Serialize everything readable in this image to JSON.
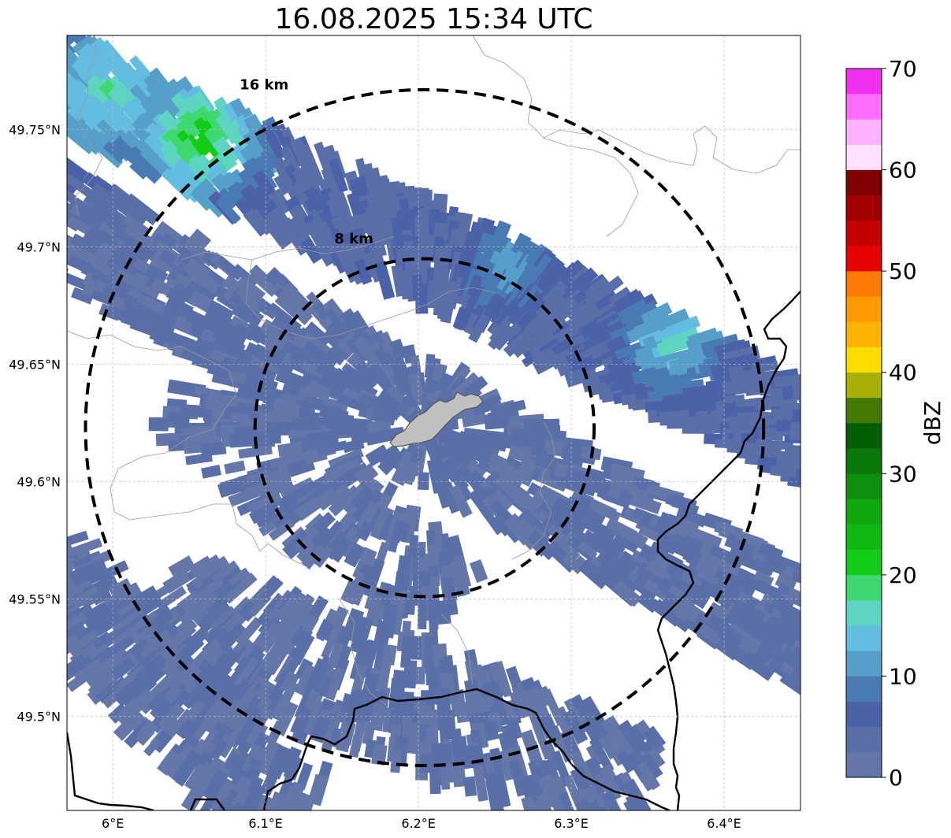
{
  "title": "16.08.2025 15:34 UTC",
  "map": {
    "lon_range": [
      5.97,
      6.45
    ],
    "lat_range": [
      49.46,
      49.79
    ],
    "lon_ticks": [
      {
        "value": 6.0,
        "label": "6°E"
      },
      {
        "value": 6.1,
        "label": "6.1°E"
      },
      {
        "value": 6.2,
        "label": "6.2°E"
      },
      {
        "value": 6.3,
        "label": "6.3°E"
      },
      {
        "value": 6.4,
        "label": "6.4°E"
      }
    ],
    "lat_ticks": [
      {
        "value": 49.75,
        "label": "49.75°N"
      },
      {
        "value": 49.7,
        "label": "49.7°N"
      },
      {
        "value": 49.65,
        "label": "49.65°N"
      },
      {
        "value": 49.6,
        "label": "49.6°N"
      },
      {
        "value": 49.55,
        "label": "49.55°N"
      },
      {
        "value": 49.5,
        "label": "49.5°N"
      }
    ],
    "radar_center": {
      "lon": 6.204,
      "lat": 49.623
    },
    "range_rings": [
      {
        "radius_km": 8,
        "label": "8 km",
        "label_lon": 6.145,
        "label_lat": 49.7015
      },
      {
        "radius_km": 16,
        "label": "16 km",
        "label_lon": 6.083,
        "label_lat": 49.767
      }
    ],
    "grid": true,
    "features": {
      "urban_area_color": "#c0c0c0",
      "border_color": "#000000",
      "admin_line_color": "#999999"
    }
  },
  "colorbar": {
    "label": "dBZ",
    "min": 0,
    "max": 70,
    "step": 2.5,
    "tick_labels": [
      "0",
      "10",
      "20",
      "30",
      "40",
      "50",
      "60",
      "70"
    ],
    "colors": [
      "#6577a8",
      "#5a6ea8",
      "#4b62a8",
      "#4a7ab3",
      "#559fc9",
      "#62bde0",
      "#5ed5c0",
      "#3ed870",
      "#12cc18",
      "#10b910",
      "#10a810",
      "#0e900e",
      "#087808",
      "#045e04",
      "#447a04",
      "#a8b008",
      "#ffdc00",
      "#ffb200",
      "#ff9a00",
      "#ff7a00",
      "#e60000",
      "#c40000",
      "#a00000",
      "#800000",
      "#ffe0ff",
      "#ffb0ff",
      "#ff6cff",
      "#f030f0"
    ]
  },
  "reflectivity_bands": [
    {
      "name": "north-band",
      "lon1": 5.95,
      "lat1": 49.775,
      "lon2": 6.47,
      "lat2": 49.615,
      "width_km": 4.2,
      "base_dbz": 3,
      "density": 0.62
    },
    {
      "name": "middle-band",
      "lon1": 5.95,
      "lat1": 49.715,
      "lon2": 6.47,
      "lat2": 49.53,
      "width_km": 5.0,
      "base_dbz": 1.5,
      "density": 0.45
    },
    {
      "name": "inner-cells",
      "lon1": 6.05,
      "lat1": 49.64,
      "lon2": 6.22,
      "lat2": 49.545,
      "width_km": 4.5,
      "base_dbz": 1,
      "density": 0.38
    },
    {
      "name": "south-band",
      "lon1": 6.03,
      "lat1": 49.545,
      "lon2": 6.35,
      "lat2": 49.465,
      "width_km": 5.5,
      "base_dbz": 1,
      "density": 0.42
    },
    {
      "name": "southwest-cells",
      "lon1": 5.95,
      "lat1": 49.565,
      "lon2": 6.12,
      "lat2": 49.455,
      "width_km": 4.5,
      "base_dbz": 1,
      "density": 0.45
    }
  ],
  "reflectivity_hotspots": [
    {
      "lon": 6.06,
      "lat": 49.745,
      "dbz": 22,
      "radius_km": 2.2
    },
    {
      "lon": 6.0,
      "lat": 49.765,
      "dbz": 16,
      "radius_km": 3.0
    },
    {
      "lon": 6.37,
      "lat": 49.66,
      "dbz": 15,
      "radius_km": 2.0
    },
    {
      "lon": 6.26,
      "lat": 49.69,
      "dbz": 11,
      "radius_km": 1.8
    }
  ]
}
